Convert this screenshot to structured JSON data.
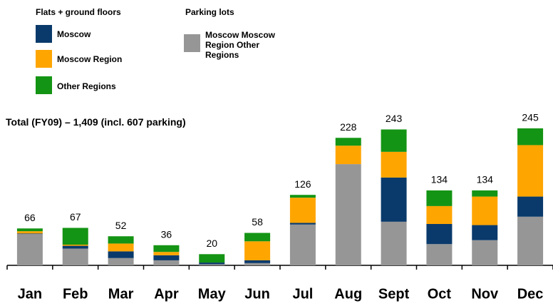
{
  "chart_data": {
    "type": "stacked_bar",
    "annotation": "Total (FY09) – 1,409 (incl. 607 parking)",
    "legend_groups": [
      "Flats + ground floors",
      "Parking lots"
    ],
    "categories": [
      "Jan",
      "Feb",
      "Mar",
      "Apr",
      "May",
      "Jun",
      "Jul",
      "Aug",
      "Sept",
      "Oct",
      "Nov",
      "Dec"
    ],
    "totals": [
      66,
      67,
      52,
      36,
      20,
      58,
      126,
      228,
      243,
      134,
      134,
      245
    ],
    "ylim": [
      0,
      250
    ],
    "series": [
      {
        "name": "Moscow Moscow Region Other Regions",
        "color": "#969696",
        "values": [
          56,
          30,
          13,
          9,
          2,
          4,
          73,
          181,
          78,
          38,
          45,
          87
        ]
      },
      {
        "name": "Moscow",
        "color": "#0a3a6b",
        "values": [
          1,
          5,
          12,
          9,
          3,
          5,
          3,
          0,
          79,
          36,
          27,
          36
        ]
      },
      {
        "name": "Moscow Region",
        "color": "#ffa500",
        "values": [
          4,
          2,
          14,
          6,
          0,
          34,
          45,
          33,
          46,
          32,
          51,
          92
        ]
      },
      {
        "name": "Other Regions",
        "color": "#149414",
        "values": [
          5,
          30,
          13,
          12,
          15,
          15,
          5,
          14,
          40,
          28,
          11,
          30
        ]
      }
    ]
  }
}
